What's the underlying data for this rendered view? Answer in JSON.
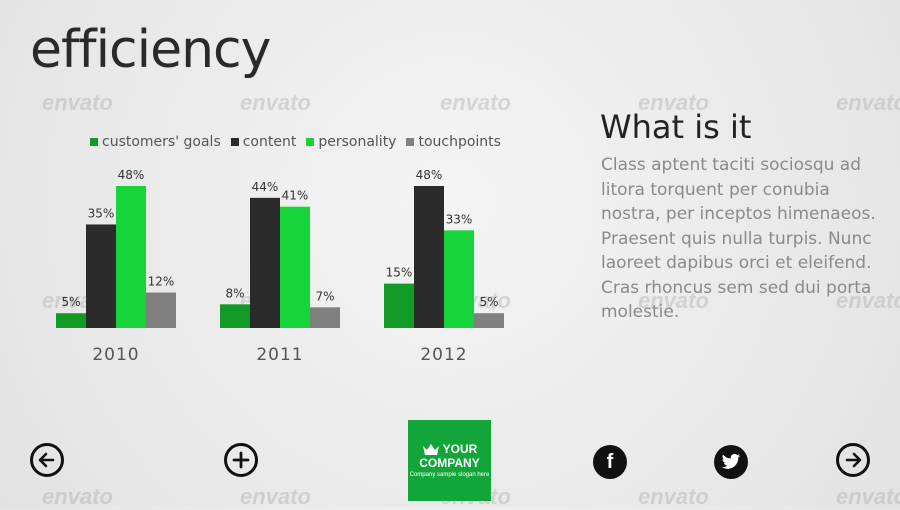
{
  "page": {
    "title": "efficiency"
  },
  "watermark_text": "envato",
  "info": {
    "title": "What is it",
    "body": "Class aptent taciti sociosqu ad litora torquent per conubia nostra, per inceptos himenaeos. Praesent quis nulla turpis. Nunc laoreet dapibus orci et eleifend. Cras rhoncus sem sed dui porta molestie."
  },
  "logo": {
    "line1": "YOUR",
    "line2": "COMPANY",
    "tagline": "Company sample slogan here"
  },
  "nav": {
    "back_icon": "arrow-left-circle-icon",
    "add_icon": "plus-circle-icon",
    "facebook_icon": "facebook-icon",
    "twitter_icon": "twitter-icon",
    "next_icon": "arrow-right-circle-icon",
    "facebook_letter": "f"
  },
  "colors": {
    "customers_goals": "#129a26",
    "content": "#2b2b2b",
    "personality": "#17d43a",
    "touchpoints": "#808080"
  },
  "chart_data": {
    "type": "bar",
    "categories": [
      "2010",
      "2011",
      "2012"
    ],
    "series": [
      {
        "name": "customers' goals",
        "values": [
          5,
          8,
          15
        ],
        "color": "#129a26"
      },
      {
        "name": "content",
        "values": [
          35,
          44,
          48
        ],
        "color": "#2b2b2b"
      },
      {
        "name": "personality",
        "values": [
          48,
          41,
          33
        ],
        "color": "#17d43a"
      },
      {
        "name": "touchpoints",
        "values": [
          12,
          7,
          5
        ],
        "color": "#808080"
      }
    ],
    "unit": "%",
    "ylim": [
      0,
      48
    ],
    "grid": false,
    "legend": "top",
    "title": "",
    "xlabel": "",
    "ylabel": ""
  }
}
